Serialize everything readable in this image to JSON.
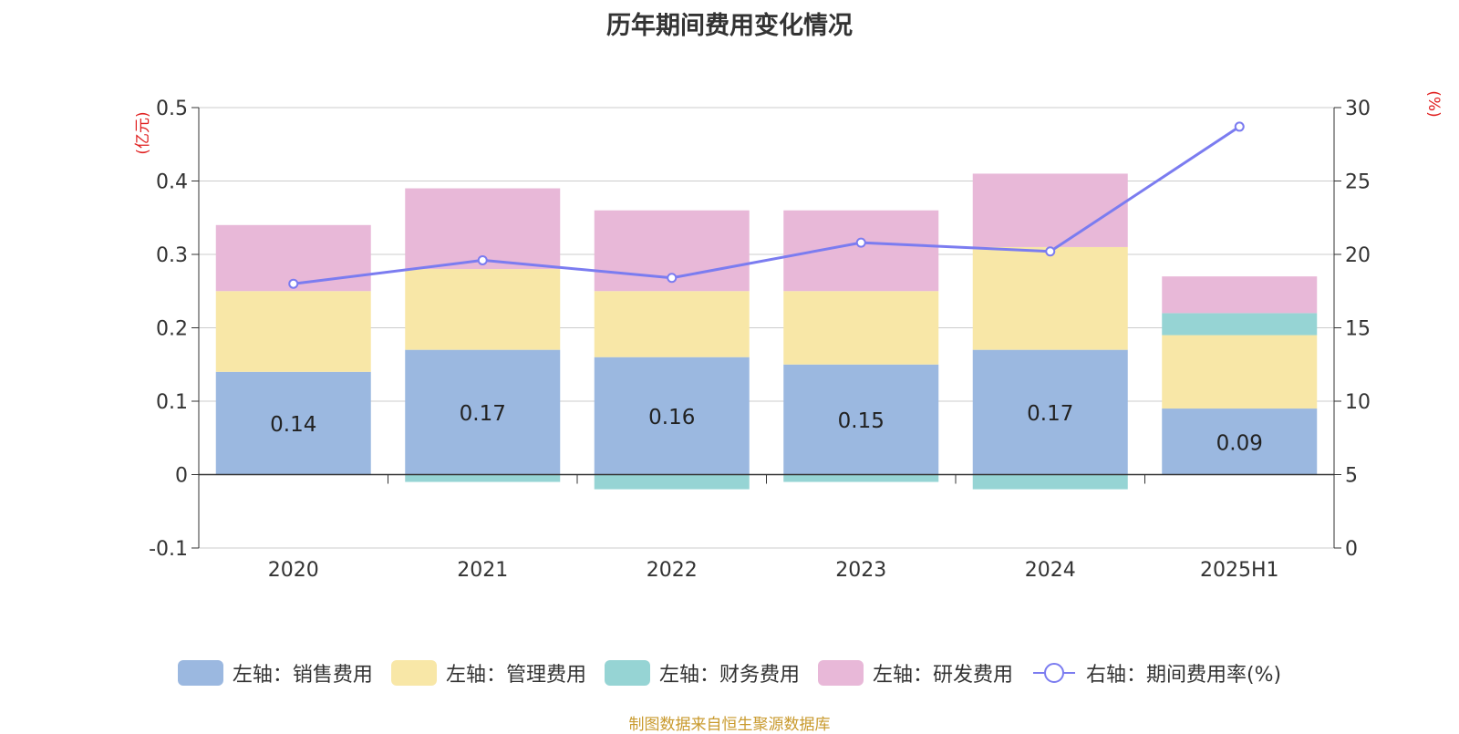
{
  "chart_data": {
    "type": "bar",
    "stacked": true,
    "title": "历年期间费用变化情况",
    "categories": [
      "2020",
      "2021",
      "2022",
      "2023",
      "2024",
      "2025H1"
    ],
    "left_axis": {
      "unit": "(亿元)",
      "ylim": [
        -0.1,
        0.5
      ],
      "ticks": [
        "-0.1",
        "0",
        "0.1",
        "0.2",
        "0.3",
        "0.4",
        "0.5"
      ]
    },
    "right_axis": {
      "unit": "(%)",
      "ylim": [
        0,
        30
      ],
      "ticks": [
        "0",
        "5",
        "10",
        "15",
        "20",
        "25",
        "30"
      ]
    },
    "series": [
      {
        "name": "左轴：销售费用",
        "axis": "left",
        "color": "#9bb8e0",
        "values": [
          0.14,
          0.17,
          0.16,
          0.15,
          0.17,
          0.09
        ],
        "labels": [
          "0.14",
          "0.17",
          "0.16",
          "0.15",
          "0.17",
          "0.09"
        ]
      },
      {
        "name": "左轴：管理费用",
        "axis": "left",
        "color": "#f8e7a7",
        "values": [
          0.11,
          0.11,
          0.09,
          0.1,
          0.14,
          0.1
        ]
      },
      {
        "name": "左轴：财务费用",
        "axis": "left",
        "color": "#96d4d4",
        "values": [
          0.0,
          -0.01,
          -0.02,
          -0.01,
          -0.02,
          0.03
        ]
      },
      {
        "name": "左轴：研发费用",
        "axis": "left",
        "color": "#e8b8d8",
        "values": [
          0.09,
          0.11,
          0.11,
          0.11,
          0.1,
          0.05
        ]
      },
      {
        "name": "右轴：期间费用率(%)",
        "axis": "right",
        "type": "line",
        "color": "#7b7cf0",
        "values": [
          18.0,
          19.6,
          18.4,
          20.8,
          20.2,
          28.7
        ]
      }
    ],
    "grid": true,
    "legend_position": "bottom"
  },
  "source_note": "制图数据来自恒生聚源数据库"
}
